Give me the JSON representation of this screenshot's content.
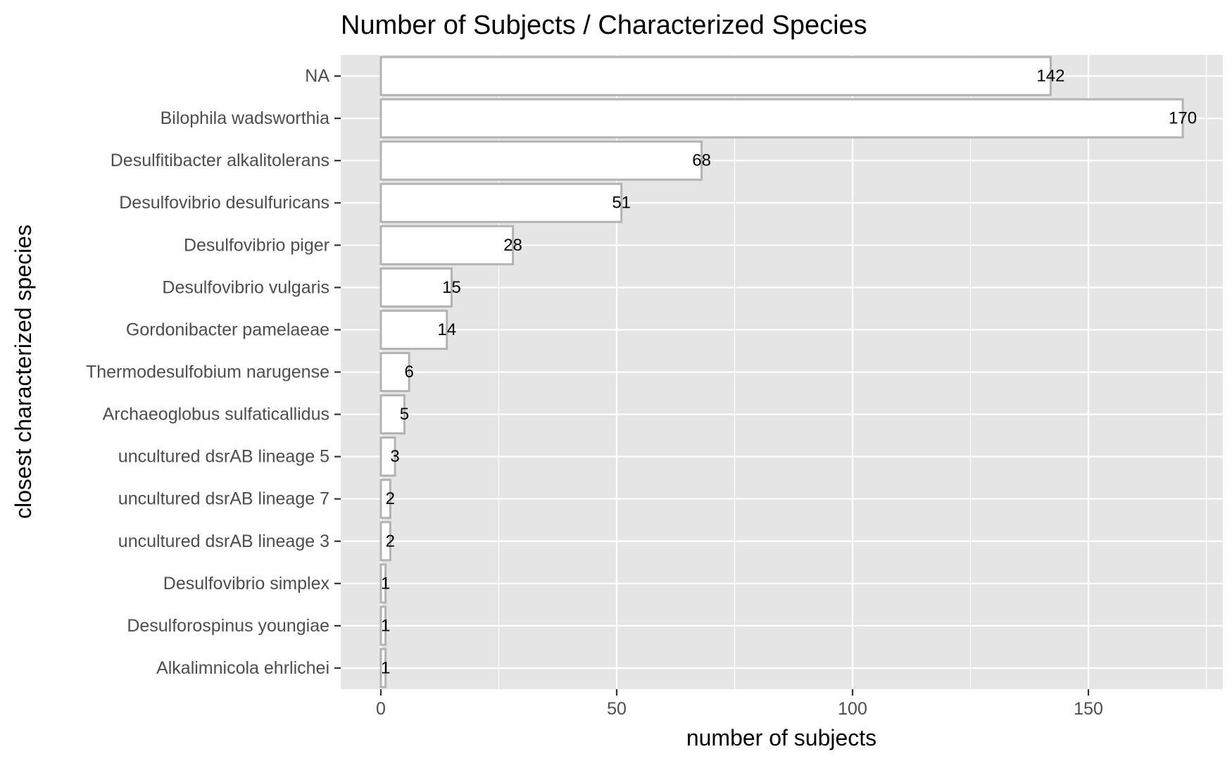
{
  "chart_data": {
    "type": "bar",
    "orientation": "horizontal",
    "title": "Number of Subjects / Characterized Species",
    "xlabel": "number of subjects",
    "ylabel": "closest characterized species",
    "categories": [
      "NA",
      "Bilophila wadsworthia",
      "Desulfitibacter alkalitolerans",
      "Desulfovibrio desulfuricans",
      "Desulfovibrio piger",
      "Desulfovibrio vulgaris",
      "Gordonibacter pamelaeae",
      "Thermodesulfobium narugense",
      "Archaeoglobus sulfaticallidus",
      "uncultured dsrAB lineage 5",
      "uncultured dsrAB lineage 7",
      "uncultured dsrAB lineage 3",
      "Desulfovibrio simplex",
      "Desulforospinus youngiae",
      "Alkalimnicola ehrlichei"
    ],
    "values": [
      142,
      170,
      68,
      51,
      28,
      15,
      14,
      6,
      5,
      3,
      2,
      2,
      1,
      1,
      1
    ],
    "value_labels": [
      "142",
      "170",
      "68",
      "51",
      "28",
      "15",
      "14",
      "6",
      "5",
      "3",
      "2",
      "2",
      "1",
      "1",
      "1"
    ],
    "xlim": [
      -8.5,
      178.5
    ],
    "x_ticks": [
      0,
      50,
      100,
      150
    ],
    "x_tick_labels": [
      "0",
      "50",
      "100",
      "150"
    ],
    "x_minor_ticks": [
      25,
      75,
      125,
      175
    ],
    "grid": true,
    "legend": "none",
    "colors": {
      "panel_background": "#E5E5E5",
      "grid": "#FFFFFF",
      "bar_fill": "#FFFFFF",
      "bar_outline": "#B3B3B3",
      "tick_label": "#4D4D4D",
      "text": "#000000"
    }
  }
}
